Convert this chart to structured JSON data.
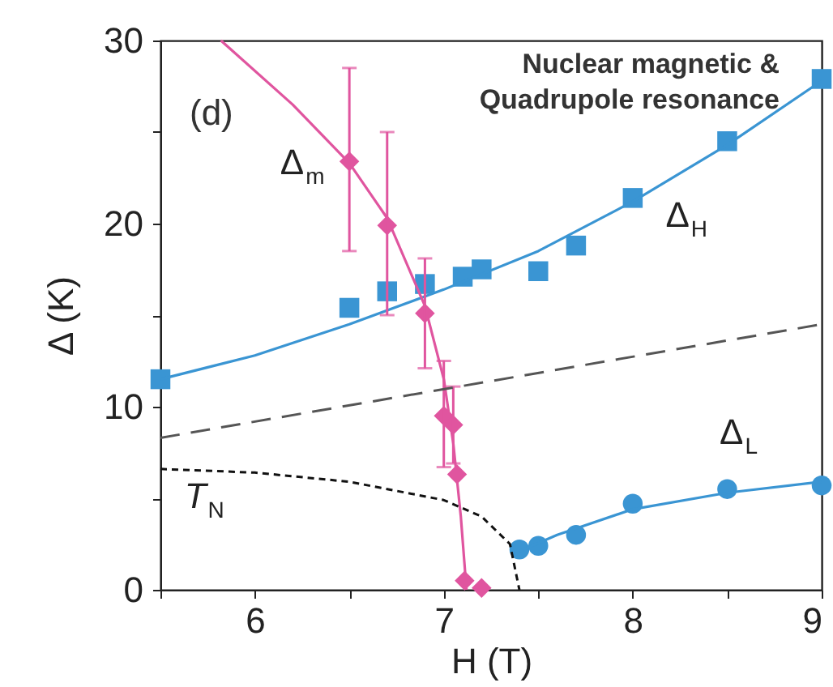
{
  "chart_data": {
    "type": "scatter",
    "annotations": [
      "(d)",
      "Nuclear magnetic &",
      "Quadrupole resonance"
    ],
    "xlabel": "H (T)",
    "ylabel": "Δ (K)",
    "xlim": [
      5.5,
      9
    ],
    "ylim": [
      0,
      30
    ],
    "xticks": [
      {
        "value": 5.5,
        "label": null
      },
      6,
      {
        "value": 6.5,
        "label": null
      },
      7,
      {
        "value": 7.5,
        "label": null
      },
      8,
      {
        "value": 8.5,
        "label": null
      },
      9
    ],
    "yticks": [
      0,
      {
        "value": 5,
        "label": null
      },
      10,
      {
        "value": 15,
        "label": null
      },
      20,
      {
        "value": 25,
        "label": null
      },
      30
    ],
    "series": [
      {
        "name": "Δ$_{H}$",
        "marker": "square",
        "color": "#3a95d3",
        "x": [
          5.5,
          6.5,
          6.7,
          6.9,
          7.1,
          7.2,
          7.5,
          7.7,
          8.0,
          8.5,
          9.0
        ],
        "values": [
          11.5,
          15.4,
          16.3,
          16.7,
          17.1,
          17.5,
          17.4,
          18.8,
          21.4,
          24.5,
          27.9
        ]
      },
      {
        "type": "line",
        "color": "#3a95d3",
        "x": [
          5.5,
          6.0,
          6.5,
          7.0,
          7.5,
          8.0,
          8.5,
          9.0
        ],
        "values": [
          11.5,
          12.8,
          14.5,
          16.4,
          18.5,
          21.2,
          24.3,
          27.8
        ]
      },
      {
        "name": "Δ$_{L}$",
        "marker": "circle",
        "color": "#3a95d3",
        "x": [
          7.4,
          7.5,
          7.7,
          8.0,
          8.5,
          9.0
        ],
        "values": [
          2.2,
          2.4,
          3.0,
          4.7,
          5.5,
          5.7
        ]
      },
      {
        "type": "line",
        "color": "#3a95d3",
        "x": [
          7.4,
          7.6,
          8.0,
          8.5,
          9.0
        ],
        "values": [
          2.1,
          3.0,
          4.4,
          5.3,
          5.9
        ]
      },
      {
        "type": "line",
        "color": "#e0559f",
        "x": [
          5.82,
          6.2,
          6.5,
          6.7,
          6.9,
          7.0,
          7.05,
          7.09,
          7.12
        ],
        "values": [
          30,
          26.5,
          23.3,
          20.3,
          15.5,
          11.5,
          8,
          4,
          0
        ]
      },
      {
        "name": "Δ$_{m}$",
        "marker": "diamond",
        "color": "#e0559f",
        "x": [
          6.5,
          6.7,
          6.9,
          7.0,
          7.05,
          7.07,
          7.11,
          7.2
        ],
        "values": [
          23.4,
          19.9,
          15.1,
          9.5,
          9.0,
          6.3,
          0.5,
          0.1
        ],
        "errors": [
          [
            18.5,
            28.5
          ],
          [
            15.0,
            25.0
          ],
          [
            12.1,
            18.1
          ],
          [
            6.7,
            12.5
          ],
          [
            6.9,
            11.1
          ],
          null,
          null,
          null
        ]
      },
      {
        "type": "line",
        "line_style": "dashed",
        "color": "#555555",
        "x": [
          5.5,
          9.0
        ],
        "values": [
          8.3,
          14.5
        ]
      },
      {
        "name": "T$_{N}$",
        "type": "line",
        "line_style": "dotted",
        "color": "#111111",
        "x": [
          5.5,
          6.0,
          6.5,
          7.0,
          7.2,
          7.35,
          7.4
        ],
        "values": [
          6.6,
          6.4,
          5.9,
          4.9,
          4.0,
          2.5,
          0
        ]
      }
    ]
  }
}
